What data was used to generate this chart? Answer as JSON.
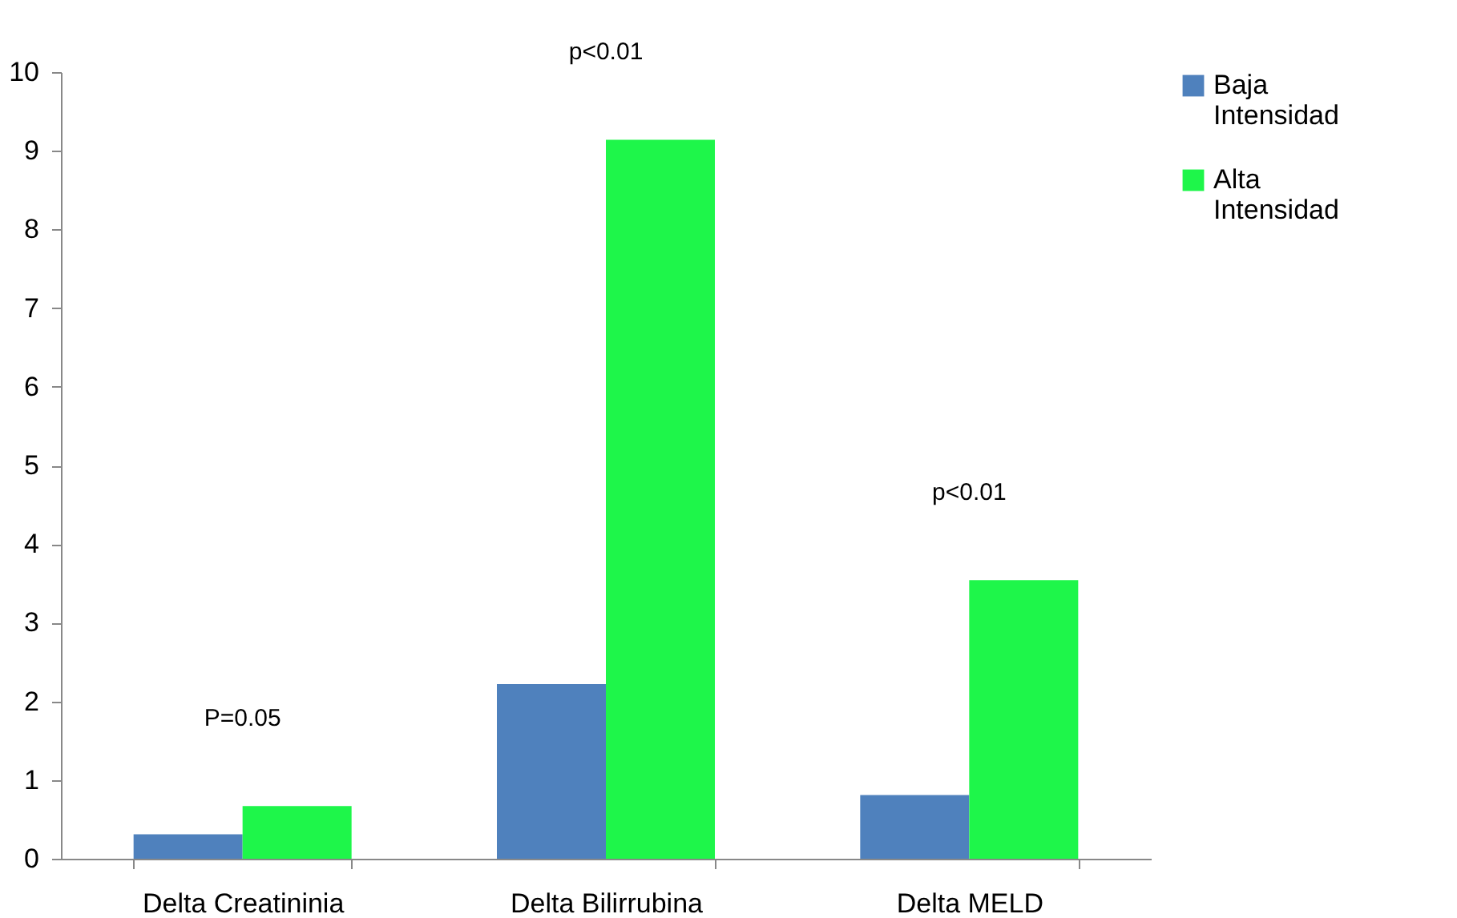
{
  "chart_data": {
    "type": "bar",
    "categories": [
      "Delta Creatininia",
      "Delta Bilirrubina",
      "Delta MELD"
    ],
    "series": [
      {
        "name": "Baja Intensidad",
        "color": "#4f81bd",
        "values": [
          0.31,
          2.22,
          0.81
        ]
      },
      {
        "name": "Alta Intensidad",
        "color": "#1ef64a",
        "values": [
          0.67,
          9.14,
          3.54
        ]
      }
    ],
    "ylim": [
      0,
      10
    ],
    "yticks": [
      0,
      1,
      2,
      3,
      4,
      5,
      6,
      7,
      8,
      9,
      10
    ],
    "grid": false,
    "legend": "right",
    "annotations": [
      "P=0.05",
      "p<0.01",
      "p<0.01"
    ]
  }
}
